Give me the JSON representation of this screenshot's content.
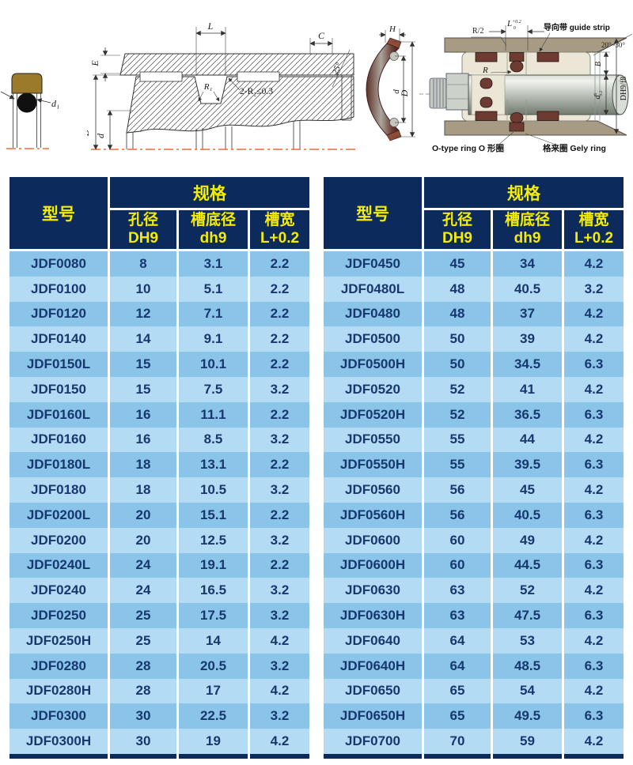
{
  "colors": {
    "header_bg": "#0c2b5c",
    "header_text": "#f6ec00",
    "row_dark": "#8bc4e9",
    "row_light": "#b4dbf4",
    "cell_text": "#17386e",
    "centerline": "#f26a3a",
    "seal_brown": "#9b7b2a",
    "maroon": "#6e3b33",
    "tan": "#a89b83",
    "cream": "#ebe6d5"
  },
  "diagrams": {
    "left_seal": {
      "d1": "d₁"
    },
    "section": {
      "L": "L",
      "C": "C",
      "E": "E",
      "D": "D",
      "d": "d",
      "R1": "R₁",
      "R2_note": "2-R₂≤0.3",
      "angle": "25°"
    },
    "profile": {
      "H": "H",
      "d": "d",
      "D": "D"
    },
    "assembly": {
      "R_half": "R/2",
      "L": "L",
      "L_sup": "+0.2",
      "L_sub": "0",
      "guide_strip": "导向带 guide strip",
      "angle_range": "20°~30°",
      "B": "B",
      "R": "R",
      "d": "d",
      "d_sup": "0",
      "d_sub": "0.2",
      "fit": "DH9/f8",
      "o_ring": "O-type ring O 形圈",
      "gely_ring": "格来圈 Gely ring"
    }
  },
  "table": {
    "headers": {
      "model": "型号",
      "spec": "规格",
      "bore_cn": "孔径",
      "bore_code": "DH9",
      "groove_cn": "槽底径",
      "groove_code": "dh9",
      "width_cn": "槽宽",
      "width_code": "L+0.2"
    },
    "left_rows": [
      [
        "JDF0080",
        "8",
        "3.1",
        "2.2"
      ],
      [
        "JDF0100",
        "10",
        "5.1",
        "2.2"
      ],
      [
        "JDF0120",
        "12",
        "7.1",
        "2.2"
      ],
      [
        "JDF0140",
        "14",
        "9.1",
        "2.2"
      ],
      [
        "JDF0150L",
        "15",
        "10.1",
        "2.2"
      ],
      [
        "JDF0150",
        "15",
        "7.5",
        "3.2"
      ],
      [
        "JDF0160L",
        "16",
        "11.1",
        "2.2"
      ],
      [
        "JDF0160",
        "16",
        "8.5",
        "3.2"
      ],
      [
        "JDF0180L",
        "18",
        "13.1",
        "2.2"
      ],
      [
        "JDF0180",
        "18",
        "10.5",
        "3.2"
      ],
      [
        "JDF0200L",
        "20",
        "15.1",
        "2.2"
      ],
      [
        "JDF0200",
        "20",
        "12.5",
        "3.2"
      ],
      [
        "JDF0240L",
        "24",
        "19.1",
        "2.2"
      ],
      [
        "JDF0240",
        "24",
        "16.5",
        "3.2"
      ],
      [
        "JDF0250",
        "25",
        "17.5",
        "3.2"
      ],
      [
        "JDF0250H",
        "25",
        "14",
        "4.2"
      ],
      [
        "JDF0280",
        "28",
        "20.5",
        "3.2"
      ],
      [
        "JDF0280H",
        "28",
        "17",
        "4.2"
      ],
      [
        "JDF0300",
        "30",
        "22.5",
        "3.2"
      ],
      [
        "JDF0300H",
        "30",
        "19",
        "4.2"
      ]
    ],
    "right_rows": [
      [
        "JDF0450",
        "45",
        "34",
        "4.2"
      ],
      [
        "JDF0480L",
        "48",
        "40.5",
        "3.2"
      ],
      [
        "JDF0480",
        "48",
        "37",
        "4.2"
      ],
      [
        "JDF0500",
        "50",
        "39",
        "4.2"
      ],
      [
        "JDF0500H",
        "50",
        "34.5",
        "6.3"
      ],
      [
        "JDF0520",
        "52",
        "41",
        "4.2"
      ],
      [
        "JDF0520H",
        "52",
        "36.5",
        "6.3"
      ],
      [
        "JDF0550",
        "55",
        "44",
        "4.2"
      ],
      [
        "JDF0550H",
        "55",
        "39.5",
        "6.3"
      ],
      [
        "JDF0560",
        "56",
        "45",
        "4.2"
      ],
      [
        "JDF0560H",
        "56",
        "40.5",
        "6.3"
      ],
      [
        "JDF0600",
        "60",
        "49",
        "4.2"
      ],
      [
        "JDF0600H",
        "60",
        "44.5",
        "6.3"
      ],
      [
        "JDF0630",
        "63",
        "52",
        "4.2"
      ],
      [
        "JDF0630H",
        "63",
        "47.5",
        "6.3"
      ],
      [
        "JDF0640",
        "64",
        "53",
        "4.2"
      ],
      [
        "JDF0640H",
        "64",
        "48.5",
        "6.3"
      ],
      [
        "JDF0650",
        "65",
        "54",
        "4.2"
      ],
      [
        "JDF0650H",
        "65",
        "49.5",
        "6.3"
      ],
      [
        "JDF0700",
        "70",
        "59",
        "4.2"
      ]
    ]
  }
}
